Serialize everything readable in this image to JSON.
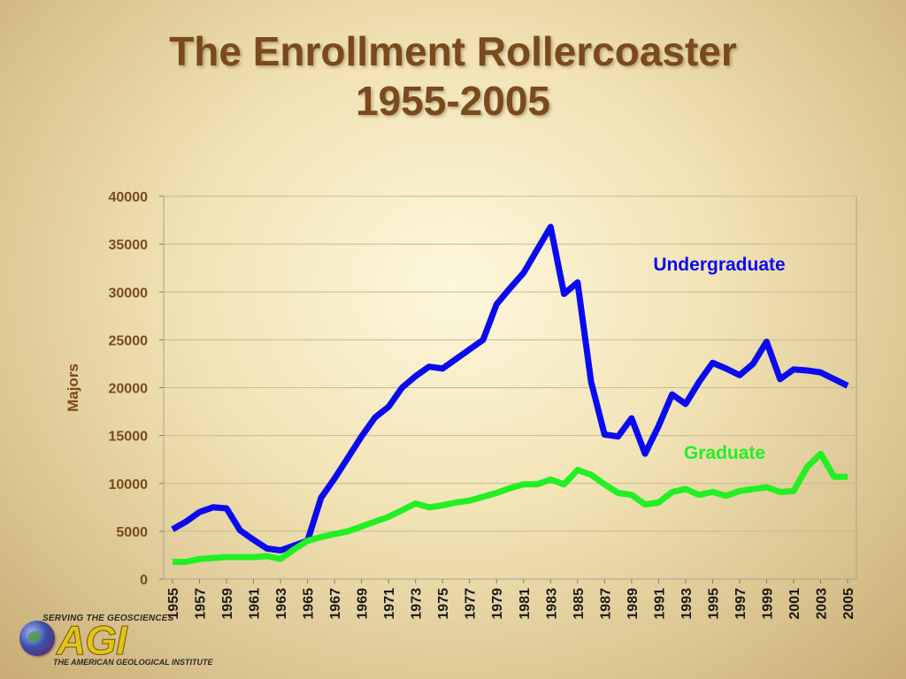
{
  "slide": {
    "title_line1": "The Enrollment Rollercoaster",
    "title_line2": "1955-2005"
  },
  "logo": {
    "tagline": "SERVING THE GEOSCIENCES",
    "mark": "AGI",
    "name": "THE AMERICAN GEOLOGICAL INSTITUTE"
  },
  "colors": {
    "undergraduate": "#0a0af0",
    "graduate": "#22f022",
    "axis_text": "#7a4a1c",
    "grid": "#c9b98f"
  },
  "chart_data": {
    "type": "line",
    "title": "",
    "xlabel": "",
    "ylabel": "Majors",
    "ylim": [
      0,
      40000
    ],
    "yticks": [
      0,
      5000,
      10000,
      15000,
      20000,
      25000,
      30000,
      35000,
      40000
    ],
    "x": [
      1955,
      1956,
      1957,
      1958,
      1959,
      1960,
      1961,
      1962,
      1963,
      1964,
      1965,
      1966,
      1967,
      1968,
      1969,
      1970,
      1971,
      1972,
      1973,
      1974,
      1975,
      1976,
      1977,
      1978,
      1979,
      1980,
      1981,
      1982,
      1983,
      1984,
      1985,
      1986,
      1987,
      1988,
      1989,
      1990,
      1991,
      1992,
      1993,
      1994,
      1995,
      1996,
      1997,
      1998,
      1999,
      2000,
      2001,
      2002,
      2003,
      2004,
      2005
    ],
    "xtick_labels": [
      "1955",
      "1957",
      "1959",
      "1961",
      "1963",
      "1965",
      "1967",
      "1969",
      "1971",
      "1973",
      "1975",
      "1977",
      "1979",
      "1981",
      "1983",
      "1985",
      "1987",
      "1989",
      "1991",
      "1993",
      "1995",
      "1997",
      "1999",
      "2001",
      "2003",
      "2005"
    ],
    "grid": true,
    "series": [
      {
        "name": "Undergraduate",
        "color": "#0a0af0",
        "values": [
          5200,
          6000,
          7000,
          7500,
          7400,
          5100,
          4100,
          3200,
          3000,
          3500,
          4000,
          8500,
          10500,
          12700,
          14900,
          16900,
          18000,
          20000,
          21200,
          22200,
          22000,
          23000,
          24000,
          25000,
          28700,
          30400,
          32000,
          34400,
          36800,
          29800,
          31000,
          20600,
          15100,
          14900,
          16800,
          13100,
          16000,
          19300,
          18300,
          20600,
          22600,
          22000,
          21300,
          22500,
          24800,
          20900,
          21900,
          21800,
          21600,
          20900,
          20200
        ]
      },
      {
        "name": "Graduate",
        "color": "#22f022",
        "values": [
          1800,
          1800,
          2100,
          2200,
          2300,
          2300,
          2300,
          2400,
          2100,
          3100,
          4000,
          4400,
          4700,
          5000,
          5500,
          6000,
          6500,
          7200,
          7900,
          7500,
          7700,
          8000,
          8200,
          8600,
          9000,
          9500,
          9900,
          9900,
          10400,
          9900,
          11400,
          10900,
          9900,
          9000,
          8800,
          7800,
          8000,
          9100,
          9400,
          8800,
          9100,
          8700,
          9200,
          9400,
          9600,
          9100,
          9200,
          11700,
          13100,
          10700,
          10700
        ]
      }
    ],
    "labels": {
      "undergraduate": "Undergraduate",
      "graduate": "Graduate"
    }
  }
}
